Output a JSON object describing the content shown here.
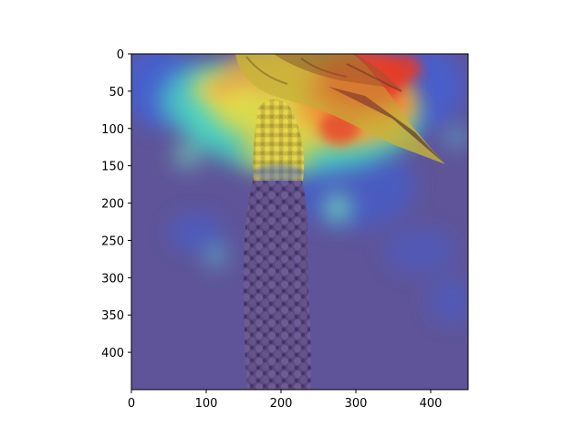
{
  "figure": {
    "image_description": "Heatmap overlay on a photo of a yellow-green bird perched on a purple flower spike",
    "x_axis": {
      "min": 0,
      "max": 450,
      "ticks": [
        0,
        100,
        200,
        300,
        400
      ]
    },
    "y_axis": {
      "min": 0,
      "max": 450,
      "inverted": true,
      "ticks": [
        0,
        50,
        100,
        150,
        200,
        250,
        300,
        350,
        400
      ]
    },
    "colormap": "jet",
    "colors": {
      "background_purple": "#5a4f9a",
      "flower_purple": "#6a5585",
      "hot_red": "#e8402a",
      "warm_orange": "#f08a35",
      "yellow": "#f1d23a",
      "cyan": "#47d4c6",
      "blue": "#3b5bdc",
      "bird_yellow": "#c9b838"
    }
  }
}
